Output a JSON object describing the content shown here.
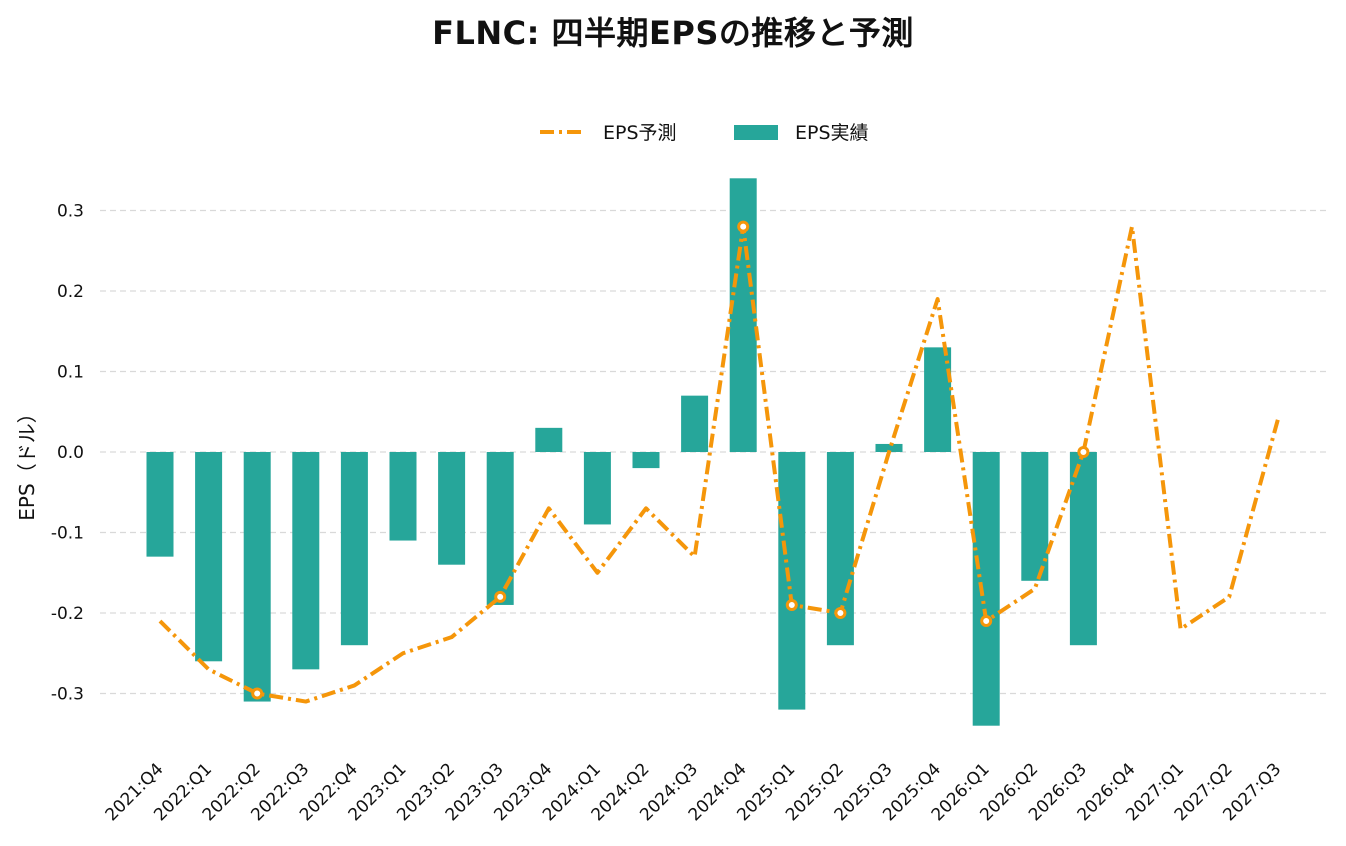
{
  "chart_data": {
    "type": "bar",
    "title": "FLNC: 四半期EPSの推移と予測",
    "ylabel": "EPS（ドル）",
    "xlabel": "",
    "ylim": [
      -0.36,
      0.34
    ],
    "yticks": [
      -0.3,
      -0.2,
      -0.1,
      0.0,
      0.1,
      0.2,
      0.3
    ],
    "ytick_labels": [
      "-0.3",
      "-0.2",
      "-0.1",
      "0.0",
      "0.1",
      "0.2",
      "0.3"
    ],
    "grid": "horizontal dashed",
    "legend_position": "top-center",
    "categories": [
      "2021:Q4",
      "2022:Q1",
      "2022:Q2",
      "2022:Q3",
      "2022:Q4",
      "2023:Q1",
      "2023:Q2",
      "2023:Q3",
      "2023:Q4",
      "2024:Q1",
      "2024:Q2",
      "2024:Q3",
      "2024:Q4",
      "2025:Q1",
      "2025:Q2",
      "2025:Q3",
      "2025:Q4",
      "2026:Q1",
      "2026:Q2",
      "2026:Q3",
      "2026:Q4",
      "2027:Q1",
      "2027:Q2",
      "2027:Q3"
    ],
    "series": [
      {
        "name": "EPS予測",
        "type": "line",
        "color": "#f5960a",
        "style": "dashdot",
        "values": [
          -0.21,
          -0.27,
          -0.3,
          -0.31,
          -0.29,
          -0.25,
          -0.23,
          -0.18,
          -0.07,
          -0.15,
          -0.07,
          -0.13,
          0.28,
          -0.19,
          -0.2,
          0.0,
          0.19,
          -0.21,
          -0.17,
          0.0,
          0.28,
          -0.22,
          -0.18,
          0.04
        ],
        "highlighted_points": [
          "2022:Q2",
          "2023:Q3",
          "2024:Q4",
          "2025:Q1",
          "2025:Q2",
          "2026:Q1",
          "2026:Q3"
        ]
      },
      {
        "name": "EPS実績",
        "type": "bar",
        "color": "#26a69a",
        "values": [
          -0.13,
          -0.26,
          -0.31,
          -0.27,
          -0.24,
          -0.11,
          -0.14,
          -0.19,
          0.03,
          -0.09,
          -0.02,
          0.07,
          0.34,
          -0.32,
          -0.24,
          0.01,
          0.13,
          -0.34,
          -0.16,
          -0.24,
          null,
          null,
          null,
          null
        ]
      }
    ]
  }
}
